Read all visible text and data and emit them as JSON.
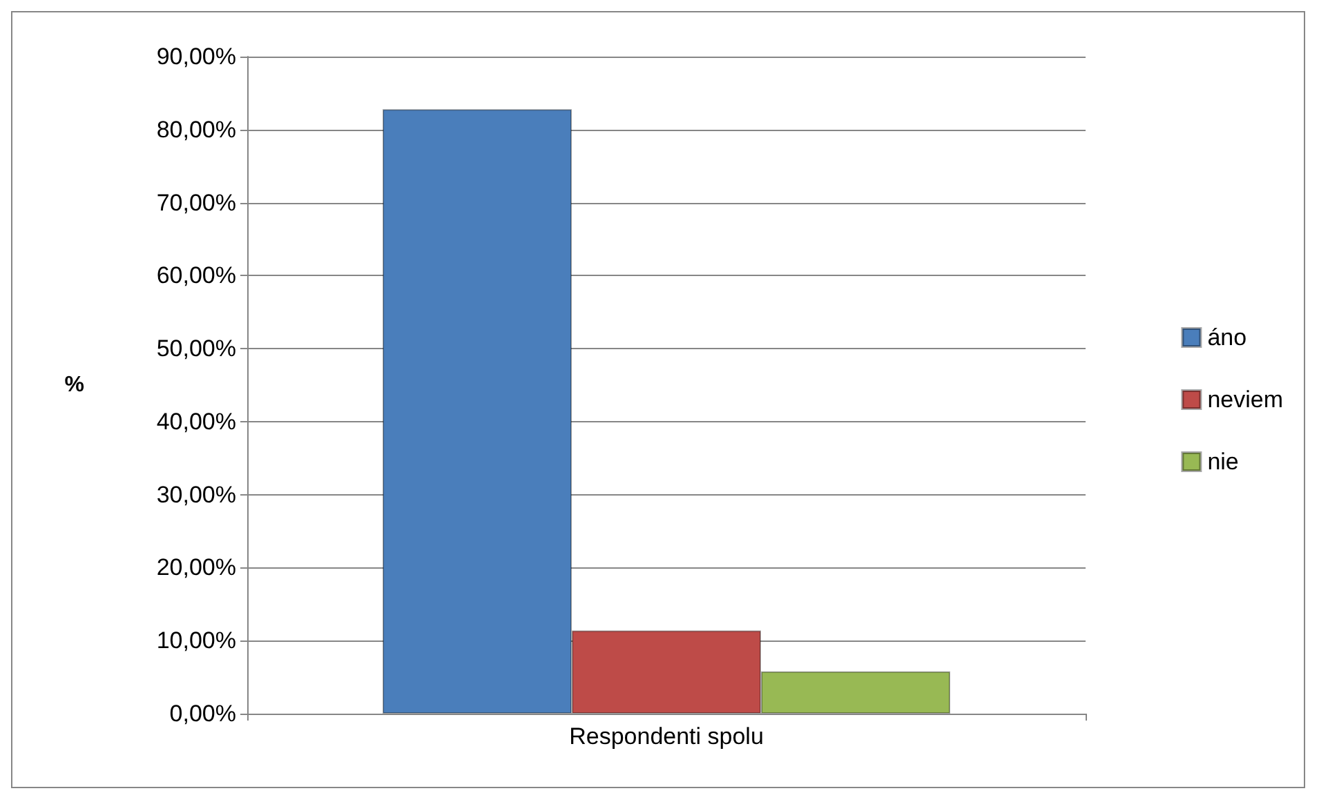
{
  "chart_data": {
    "type": "bar",
    "categories": [
      "Respondenti spolu"
    ],
    "ylabel": "%",
    "series": [
      {
        "name": "áno",
        "color": "#4a7ebb",
        "values": [
          82.8
        ]
      },
      {
        "name": "neviem",
        "color": "#be4b48",
        "values": [
          11.4
        ]
      },
      {
        "name": "nie",
        "color": "#98b954",
        "values": [
          5.8
        ]
      }
    ],
    "ylim": [
      0,
      90
    ],
    "yticks": [
      {
        "value": 0,
        "label": "0,00%"
      },
      {
        "value": 10,
        "label": "10,00%"
      },
      {
        "value": 20,
        "label": "20,00%"
      },
      {
        "value": 30,
        "label": "30,00%"
      },
      {
        "value": 40,
        "label": "40,00%"
      },
      {
        "value": 50,
        "label": "50,00%"
      },
      {
        "value": 60,
        "label": "60,00%"
      },
      {
        "value": 70,
        "label": "70,00%"
      },
      {
        "value": 80,
        "label": "80,00%"
      },
      {
        "value": 90,
        "label": "90,00%"
      }
    ],
    "grid": "y",
    "legend": "right"
  }
}
